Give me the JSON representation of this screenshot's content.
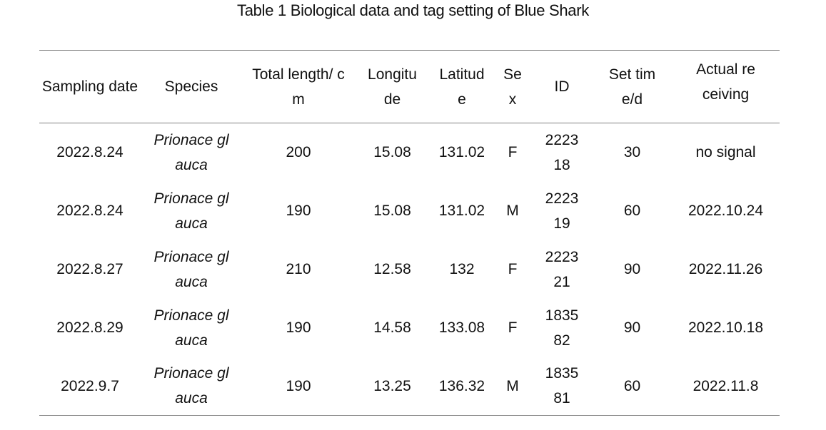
{
  "caption": "Table 1 Biological data and tag setting of Blue Shark",
  "headers": {
    "sampling_date": "Sampling date",
    "species": "Species",
    "total_length": "Total length/ cm",
    "longitude": "Longitu de",
    "latitude": "Latitud e",
    "sex": "Se x",
    "id": "ID",
    "set_time": "Set time/d",
    "actual_receiving": "Actual receiving"
  },
  "rows": [
    {
      "sampling_date": "2022.8.24",
      "species": "Prionace glauca",
      "total_length": "200",
      "longitude": "15.08",
      "latitude": "131.02",
      "sex": "F",
      "id": "222318",
      "set_time": "30",
      "actual_receiving": "no signal"
    },
    {
      "sampling_date": "2022.8.24",
      "species": "Prionace glauca",
      "total_length": "190",
      "longitude": "15.08",
      "latitude": "131.02",
      "sex": "M",
      "id": "222319",
      "set_time": "60",
      "actual_receiving": "2022.10.24"
    },
    {
      "sampling_date": "2022.8.27",
      "species": "Prionace glauca",
      "total_length": "210",
      "longitude": "12.58",
      "latitude": "132",
      "sex": "F",
      "id": "222321",
      "set_time": "90",
      "actual_receiving": "2022.11.26"
    },
    {
      "sampling_date": "2022.8.29",
      "species": "Prionace glauca",
      "total_length": "190",
      "longitude": "14.58",
      "latitude": "133.08",
      "sex": "F",
      "id": "183582",
      "set_time": "90",
      "actual_receiving": "2022.10.18"
    },
    {
      "sampling_date": "2022.9.7",
      "species": "Prionace glauca",
      "total_length": "190",
      "longitude": "13.25",
      "latitude": "136.32",
      "sex": "M",
      "id": "183581",
      "set_time": "60",
      "actual_receiving": "2022.11.8"
    }
  ]
}
